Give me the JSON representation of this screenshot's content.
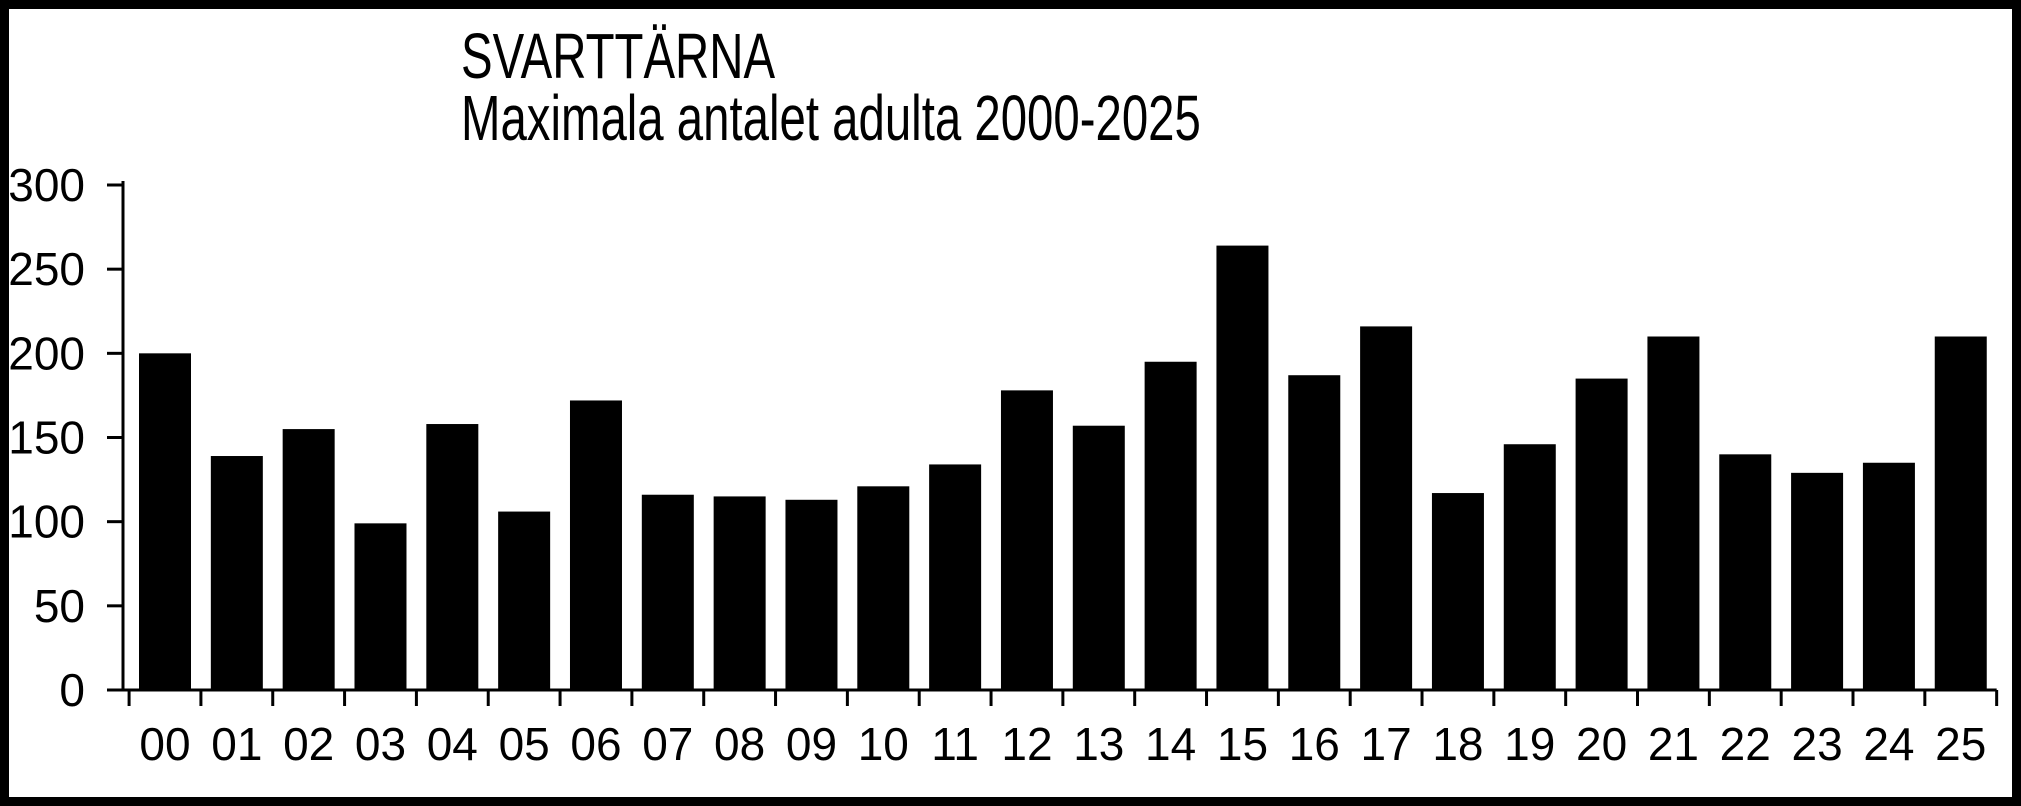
{
  "chart": {
    "title": "SVARTTÄRNA",
    "subtitle": "Maximala antalet adulta 2000-2025"
  },
  "chart_data": {
    "type": "bar",
    "title": "SVARTTÄRNA",
    "subtitle": "Maximala antalet adulta 2000-2025",
    "categories": [
      "00",
      "01",
      "02",
      "03",
      "04",
      "05",
      "06",
      "07",
      "08",
      "09",
      "10",
      "11",
      "12",
      "13",
      "14",
      "15",
      "16",
      "17",
      "18",
      "19",
      "20",
      "21",
      "22",
      "23",
      "24",
      "25"
    ],
    "values": [
      200,
      139,
      155,
      99,
      158,
      106,
      172,
      116,
      115,
      113,
      121,
      134,
      178,
      157,
      195,
      264,
      187,
      216,
      117,
      146,
      185,
      210,
      140,
      129,
      135,
      210
    ],
    "xlabel": "",
    "ylabel": "",
    "ylim": [
      0,
      300
    ],
    "yticks": [
      0,
      50,
      100,
      150,
      200,
      250,
      300
    ],
    "bar_color": "#000000",
    "axis_color": "#000000",
    "background_color": "#ffffff",
    "grid": false,
    "legend_position": "none"
  }
}
